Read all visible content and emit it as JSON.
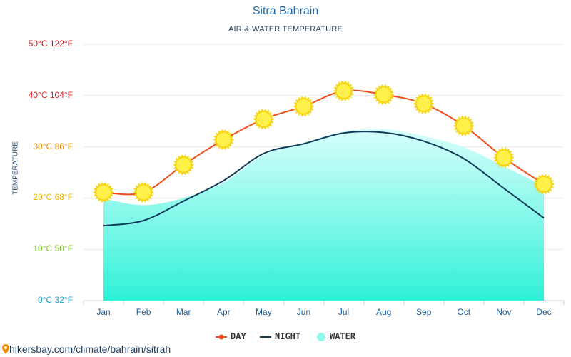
{
  "title": "Sitra Bahrain",
  "subtitle": "AIR & WATER TEMPERATURE",
  "footer": "hikersbay.com/climate/bahrain/sitrah",
  "chart_data": {
    "type": "line",
    "title": "Sitra Bahrain",
    "subtitle": "AIR & WATER TEMPERATURE",
    "ylabel": "TEMPERATURE",
    "xlabel": "",
    "categories": [
      "Jan",
      "Feb",
      "Mar",
      "Apr",
      "May",
      "Jun",
      "Jul",
      "Aug",
      "Sep",
      "Oct",
      "Nov",
      "Dec"
    ],
    "ylim": [
      0,
      50
    ],
    "yticks": [
      {
        "value": 0,
        "label": "0°C 32°F",
        "color": "#1a9fd6"
      },
      {
        "value": 10,
        "label": "10°C 50°F",
        "color": "#7bc81f"
      },
      {
        "value": 20,
        "label": "20°C 68°F",
        "color": "#f0b400"
      },
      {
        "value": 30,
        "label": "30°C 86°F",
        "color": "#f08c00"
      },
      {
        "value": 40,
        "label": "40°C 104°F",
        "color": "#e4201f"
      },
      {
        "value": 50,
        "label": "50°C 122°F",
        "color": "#d4141c"
      }
    ],
    "grid": true,
    "legend_position": "bottom",
    "series": [
      {
        "name": "DAY",
        "kind": "line",
        "color": "#f04e1a",
        "marker": "sun-icon",
        "values": [
          21.1,
          21.1,
          26.5,
          31.4,
          35.4,
          37.9,
          40.9,
          40.2,
          38.4,
          34.1,
          27.9,
          22.7
        ]
      },
      {
        "name": "NIGHT",
        "kind": "line",
        "color": "#0d3b5a",
        "values": [
          14.6,
          15.6,
          19.4,
          23.4,
          28.7,
          30.6,
          32.7,
          32.8,
          31.1,
          27.7,
          21.9,
          16.1
        ]
      },
      {
        "name": "WATER",
        "kind": "area",
        "color": "#8ef7ea",
        "values": [
          19.9,
          18.6,
          20.0,
          23.0,
          28.4,
          30.8,
          33.0,
          33.5,
          32.1,
          29.9,
          26.2,
          22.3
        ]
      }
    ]
  }
}
